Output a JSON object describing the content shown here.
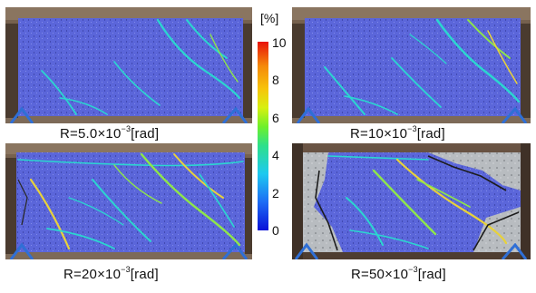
{
  "panels": [
    {
      "cap_base": "R=5.0×10",
      "cap_exp": "−3",
      "cap_unit": "[rad]"
    },
    {
      "cap_base": "R=10×10",
      "cap_exp": "−3",
      "cap_unit": "[rad]"
    },
    {
      "cap_base": "R=20×10",
      "cap_exp": "−3",
      "cap_unit": "[rad]"
    },
    {
      "cap_base": "R=50×10",
      "cap_exp": "−3",
      "cap_unit": "[rad]"
    }
  ],
  "colorbar": {
    "unit": "[%]",
    "ticks": [
      "10",
      "8",
      "6",
      "4",
      "2",
      "0"
    ],
    "gradient_colors": [
      "#0a10d8",
      "#1d6cf5",
      "#1ec9f0",
      "#2ee08a",
      "#6ef02a",
      "#d8f010",
      "#f7c40a",
      "#f58a0a",
      "#e8120a"
    ]
  },
  "colors": {
    "specimen_blue": "#5a63d8",
    "crack_cyan": "#2bd6d0",
    "crack_green": "#8ee64a",
    "crack_yellow": "#e8d23a",
    "spalled_concrete": "#b8bcc0",
    "lab_background": "#6b5644"
  }
}
